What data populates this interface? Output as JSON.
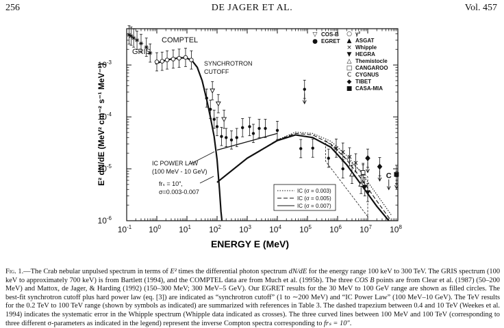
{
  "header": {
    "page_number": "256",
    "running_title": "DE JAGER ET AL.",
    "volume": "Vol. 457"
  },
  "chart_data": {
    "type": "scatter",
    "log_x": true,
    "log_y": true,
    "xlabel": "ENERGY E (MeV)",
    "ylabel": "E² dN/dE (MeV² cm⁻² s⁻¹ MeV⁻¹)",
    "xlim": [
      0.1,
      100000000
    ],
    "ylim": [
      1e-06,
      0.005
    ],
    "x_ticks": [
      {
        "label": "10",
        "sup": "-1"
      },
      {
        "label": "10",
        "sup": "0"
      },
      {
        "label": "10",
        "sup": "1"
      },
      {
        "label": "10",
        "sup": "2"
      },
      {
        "label": "10",
        "sup": "3"
      },
      {
        "label": "10",
        "sup": "4"
      },
      {
        "label": "10",
        "sup": "5"
      },
      {
        "label": "10",
        "sup": "6"
      },
      {
        "label": "10",
        "sup": "7"
      },
      {
        "label": "10",
        "sup": "8"
      }
    ],
    "y_ticks": [
      {
        "label": "10",
        "sup": "-6"
      },
      {
        "label": "10",
        "sup": "-5"
      },
      {
        "label": "10",
        "sup": "-4"
      },
      {
        "label": "10",
        "sup": "-3"
      }
    ],
    "annotations": {
      "comptel": "COMPTEL",
      "gris": "GRIS",
      "synchrotron": "SYNCHROTRON",
      "cutoff": "CUTOFF",
      "ic_power_law": "IC POWER LAW",
      "ic_range": "(100 MeV - 10 GeV)",
      "frs": "frₛ = 10″,",
      "sigma_range": "σ=0.003-0.007"
    },
    "symbol_legend": [
      {
        "symbol": "▽",
        "label": "COS-B"
      },
      {
        "symbol": "●",
        "label": "EGRET"
      },
      {
        "symbol": "○",
        "label": "γ²"
      },
      {
        "symbol": "▲",
        "label": "ASGAT"
      },
      {
        "symbol": "×",
        "label": "Whipple"
      },
      {
        "symbol": "▼",
        "label": "HEGRA"
      },
      {
        "symbol": "△",
        "label": "Themistocle"
      },
      {
        "symbol": "□",
        "label": "CANGAROO"
      },
      {
        "symbol": "C",
        "label": "CYGNUS"
      },
      {
        "symbol": "◆",
        "label": "TIBET"
      },
      {
        "symbol": "■",
        "label": "CASA-MIA"
      }
    ],
    "curve_legend": [
      {
        "label": "IC (σ = 0.003)",
        "style": "dotted"
      },
      {
        "label": "IC (σ = 0.005)",
        "style": "dashed"
      },
      {
        "label": "IC (σ = 0.007)",
        "style": "solid"
      }
    ],
    "series": [
      {
        "name": "GRIS",
        "marker": "star",
        "points": [
          [
            0.12,
            0.0038
          ],
          [
            0.14,
            0.0036
          ],
          [
            0.17,
            0.0033
          ],
          [
            0.22,
            0.003
          ],
          [
            0.3,
            0.0026
          ],
          [
            0.45,
            0.0022
          ],
          [
            0.6,
            0.0017
          ]
        ]
      },
      {
        "name": "COMPTEL",
        "marker": "circle",
        "points": [
          [
            1.0,
            0.00115
          ],
          [
            1.5,
            0.00118
          ],
          [
            2.2,
            0.00125
          ],
          [
            3.5,
            0.0013
          ],
          [
            5.5,
            0.00135
          ],
          [
            9,
            0.0014
          ],
          [
            14,
            0.00125
          ]
        ]
      },
      {
        "name": "COS-B",
        "marker": "triangle-down",
        "points": [
          [
            70,
            0.00032
          ],
          [
            110,
            0.00018
          ],
          [
            170,
            9e-05
          ]
        ]
      },
      {
        "name": "EGRET",
        "marker": "dot",
        "points": [
          [
            45,
            0.00023
          ],
          [
            60,
            0.00014
          ],
          [
            80,
            9e-05
          ],
          [
            100,
            6.5e-05
          ],
          [
            140,
            4.2e-05
          ],
          [
            200,
            4e-05
          ],
          [
            300,
            3.6e-05
          ],
          [
            450,
            4e-05
          ],
          [
            700,
            6.2e-05
          ],
          [
            1200,
            6.5e-05
          ],
          [
            1600,
            4.8e-05
          ],
          [
            2500,
            6e-05
          ],
          [
            4000,
            6e-05
          ],
          [
            10000,
            5.5e-05
          ],
          [
            60000,
            2.45e-05
          ],
          [
            150000,
            2.5e-05
          ],
          [
            500000,
            1.6e-05
          ],
          [
            1500000,
            1e-05
          ],
          [
            80000,
            0.00034
          ]
        ]
      },
      {
        "name": "ASGAT",
        "marker": "triangle",
        "points": [
          [
            3000000,
            7.8e-06
          ]
        ]
      },
      {
        "name": "Whipple",
        "marker": "x",
        "points": [
          [
            900000,
            2.5e-05
          ],
          [
            1500000,
            2.1e-05
          ],
          [
            2500000,
            1.7e-05
          ],
          [
            4000000,
            1.3e-05
          ],
          [
            7000000,
            8e-06
          ]
        ]
      },
      {
        "name": "HEGRA",
        "marker": "triangle-down-filled",
        "points": [
          [
            8000000,
            4.5e-06
          ],
          [
            10000000,
            3.5e-06
          ]
        ]
      },
      {
        "name": "Themistocle",
        "marker": "triangle",
        "points": [
          [
            6000000,
            5e-06
          ]
        ]
      },
      {
        "name": "CANGAROO",
        "marker": "square",
        "points": [
          [
            7000000,
            8.5e-06
          ]
        ]
      },
      {
        "name": "CYGNUS",
        "marker": "C",
        "points": [
          [
            50000000,
            7.5e-06
          ]
        ]
      },
      {
        "name": "TIBET",
        "marker": "diamond",
        "points": [
          [
            10000000,
            1.6e-05
          ],
          [
            25000000,
            1.1e-05
          ]
        ]
      },
      {
        "name": "CASA-MIA",
        "marker": "square-filled",
        "points": [
          [
            90000000,
            7.8e-06
          ]
        ]
      }
    ],
    "curves": [
      {
        "name": "synchrotron",
        "style": "solid-heavy",
        "points": [
          [
            0.9,
            0.00105
          ],
          [
            1.5,
            0.00118
          ],
          [
            3,
            0.0013
          ],
          [
            6,
            0.00138
          ],
          [
            10,
            0.00136
          ],
          [
            15,
            0.0012
          ],
          [
            22,
            0.0009
          ],
          [
            32,
            0.0005
          ],
          [
            45,
            0.00022
          ],
          [
            60,
            0.0001
          ],
          [
            80,
            4.2e-05
          ],
          [
            100,
            1.5e-05
          ],
          [
            120,
            4e-06
          ],
          [
            135,
            1.5e-06
          ],
          [
            145,
            1e-06
          ]
        ]
      },
      {
        "name": "IC power law",
        "style": "solid",
        "points": [
          [
            100,
            2.3e-05
          ],
          [
            10000,
            4.8e-05
          ]
        ]
      },
      {
        "name": "IC (σ = 0.003)",
        "style": "dotted",
        "points": [
          [
            100,
            5.5e-06
          ],
          [
            1000,
            1.6e-05
          ],
          [
            10000,
            3.6e-05
          ],
          [
            40000,
            5.1e-05
          ],
          [
            150000,
            4.8e-05
          ],
          [
            600000,
            3.4e-05
          ],
          [
            2000000,
            1.8e-05
          ],
          [
            6000000,
            8.5e-06
          ],
          [
            20000000,
            3.2e-06
          ],
          [
            60000000,
            1.3e-06
          ]
        ]
      },
      {
        "name": "IC (σ = 0.005)",
        "style": "dashed",
        "points": [
          [
            100,
            5.5e-06
          ],
          [
            1000,
            1.6e-05
          ],
          [
            10000,
            3.6e-05
          ],
          [
            40000,
            4.8e-05
          ],
          [
            150000,
            4.5e-05
          ],
          [
            600000,
            3e-05
          ],
          [
            2000000,
            1.5e-05
          ],
          [
            6000000,
            6.5e-06
          ],
          [
            20000000,
            2.4e-06
          ],
          [
            60000000,
            1e-06
          ]
        ]
      },
      {
        "name": "IC (σ = 0.007)",
        "style": "solid-heavy",
        "points": [
          [
            100,
            5.5e-06
          ],
          [
            1000,
            1.6e-05
          ],
          [
            10000,
            3.5e-05
          ],
          [
            40000,
            4.5e-05
          ],
          [
            150000,
            4e-05
          ],
          [
            600000,
            2.6e-05
          ],
          [
            2000000,
            1.2e-05
          ],
          [
            6000000,
            5e-06
          ],
          [
            20000000,
            1.9e-06
          ],
          [
            50000000,
            1e-06
          ]
        ]
      }
    ],
    "whipple_trapezium": [
      [
        400000,
        3.5e-05
      ],
      [
        10000000,
        7e-06
      ],
      [
        10000000,
        1.2e-06
      ],
      [
        400000,
        1.4e-05
      ]
    ]
  },
  "caption": {
    "lead": "Fig. 1.",
    "body_1": "—The Crab nebular unpulsed spectrum in terms of ",
    "e2": "E²",
    "body_2": " times the differential photon spectrum ",
    "dnde": "dN/dE",
    "body_3": " for the energy range 100 keV to 300 TeV. The GRIS spectrum (100 keV to approximately 700 keV) is from Bartlett (1994), and the COMPTEL data are from Much et al. (1995b). The three ",
    "cosb": "COS B",
    "body_4": " points are from Clear et al. (1987) (50–200 MeV) and Mattox, de Jager, & Harding (1992) (150–300 MeV; 300 MeV–5 GeV). Our EGRET results for the 30 MeV to 100 GeV range are shown as filled circles. The best-fit synchrotron cutoff plus hard power law (eq. [3]) are indicated as “synchrotron cutoff” (1 to ∼200 MeV) and “IC Power Law” (100 MeV–10 GeV). The TeV results for the 0.2 TeV to 100 TeV range (shown by symbols as indicated) are summarized with references in Table 3. The dashed trapezium between 0.4 and 10 TeV (Weekes et al. 1994) indicates the systematic error in the Whipple spectrum (Whipple data indicated as crosses). The three curved lines between 100 MeV and 100 TeV (corresponding to three different σ-parameters as indicated in the legend) represent the inverse Compton spectra corresponding to ",
    "frs": "frₛ = 10″",
    "body_5": "."
  }
}
